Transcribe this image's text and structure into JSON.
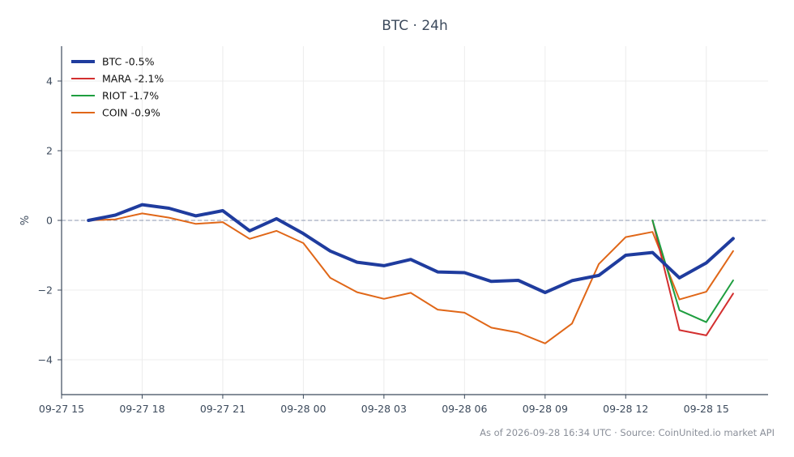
{
  "chart_data": {
    "type": "line",
    "title": "BTC · 24h",
    "ylabel": "%",
    "xlabel": "",
    "ylim": [
      -5,
      5
    ],
    "yticks": [
      -4,
      -2,
      0,
      2,
      4
    ],
    "ytick_labels": [
      "−4",
      "−2",
      "0",
      "2",
      "4"
    ],
    "x_hours": [
      0,
      1,
      2,
      3,
      4,
      5,
      6,
      7,
      8,
      9,
      10,
      11,
      12,
      13,
      14,
      15,
      16,
      17,
      18,
      19,
      20,
      21,
      22,
      23,
      24
    ],
    "xlim_hours": [
      -1.0,
      25.3
    ],
    "xticks_hours": [
      -1,
      2,
      5,
      8,
      11,
      14,
      17,
      20,
      23
    ],
    "xtick_labels": [
      "09-27 15",
      "09-27 18",
      "09-27 21",
      "09-28 00",
      "09-28 03",
      "09-28 06",
      "09-28 09",
      "09-28 12",
      "09-28 15"
    ],
    "grid": true,
    "zero_line": true,
    "legend_position": "top-left",
    "series": [
      {
        "name": "BTC -0.5%",
        "color": "#1f3c9e",
        "width": 4,
        "values": [
          0.0,
          0.15,
          0.45,
          0.35,
          0.13,
          0.28,
          -0.3,
          0.05,
          -0.38,
          -0.88,
          -1.2,
          -1.3,
          -1.12,
          -1.48,
          -1.5,
          -1.75,
          -1.72,
          -2.07,
          -1.73,
          -1.58,
          -1.0,
          -0.92,
          -1.65,
          -1.22,
          -0.52
        ]
      },
      {
        "name": "MARA -2.1%",
        "color": "#d32f2f",
        "width": 2,
        "values": [
          null,
          null,
          null,
          null,
          null,
          null,
          null,
          null,
          null,
          null,
          null,
          null,
          null,
          null,
          null,
          null,
          null,
          null,
          null,
          null,
          null,
          0.0,
          -3.15,
          -3.3,
          -2.1
        ]
      },
      {
        "name": "RIOT -1.7%",
        "color": "#1e9e3f",
        "width": 2,
        "values": [
          null,
          null,
          null,
          null,
          null,
          null,
          null,
          null,
          null,
          null,
          null,
          null,
          null,
          null,
          null,
          null,
          null,
          null,
          null,
          null,
          null,
          0.0,
          -2.58,
          -2.92,
          -1.72
        ]
      },
      {
        "name": "COIN -0.9%",
        "color": "#e06718",
        "width": 2,
        "values": [
          0.0,
          0.03,
          0.2,
          0.08,
          -0.1,
          -0.05,
          -0.53,
          -0.3,
          -0.65,
          -1.65,
          -2.06,
          -2.25,
          -2.08,
          -2.56,
          -2.65,
          -3.08,
          -3.22,
          -3.53,
          -2.96,
          -1.25,
          -0.48,
          -0.33,
          -2.27,
          -2.05,
          -0.88
        ]
      }
    ]
  },
  "footer": "As of 2026-09-28 16:34 UTC · Source: CoinUnited.io market API"
}
